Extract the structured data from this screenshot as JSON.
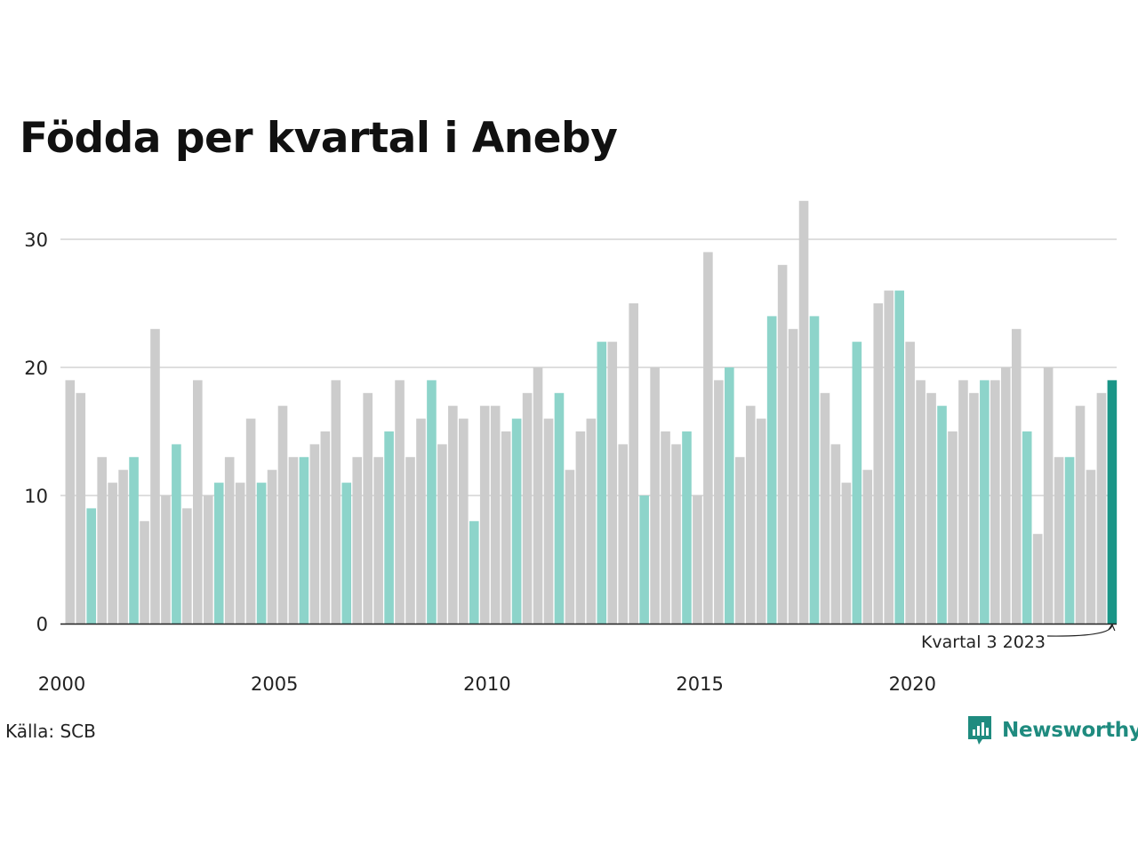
{
  "title": "Födda per kvartal i Aneby",
  "source": "Källa: SCB",
  "brand": "Newsworthy",
  "colors": {
    "gray": "#cccccc",
    "q3": "#8dd4ca",
    "highlight": "#1a9587",
    "grid": "#dedede",
    "axis": "#222222"
  },
  "chart_data": {
    "type": "bar",
    "title": "Födda per kvartal i Aneby",
    "xlabel": "",
    "ylabel": "",
    "ylim": [
      0,
      33
    ],
    "yticks": [
      0,
      10,
      20,
      30
    ],
    "xticks": [
      "2000",
      "2005",
      "2010",
      "2015",
      "2020"
    ],
    "grid": true,
    "annotation": "Kvartal 3 2023",
    "start_period": "2000 Q1",
    "highlight_quarter": 3,
    "values": [
      19,
      18,
      9,
      13,
      11,
      12,
      13,
      8,
      23,
      10,
      14,
      9,
      19,
      10,
      11,
      13,
      11,
      16,
      11,
      12,
      17,
      13,
      13,
      14,
      15,
      19,
      11,
      13,
      18,
      13,
      15,
      19,
      13,
      16,
      19,
      14,
      17,
      16,
      8,
      17,
      17,
      15,
      16,
      18,
      20,
      16,
      18,
      12,
      15,
      16,
      22,
      22,
      14,
      25,
      10,
      20,
      15,
      14,
      15,
      10,
      29,
      19,
      20,
      13,
      17,
      16,
      24,
      28,
      23,
      33,
      24,
      18,
      14,
      11,
      22,
      12,
      25,
      26,
      26,
      22,
      19,
      18,
      17,
      15,
      19,
      18,
      19,
      19,
      20,
      23,
      15,
      7,
      20,
      13,
      13,
      17,
      12,
      18,
      19
    ]
  }
}
